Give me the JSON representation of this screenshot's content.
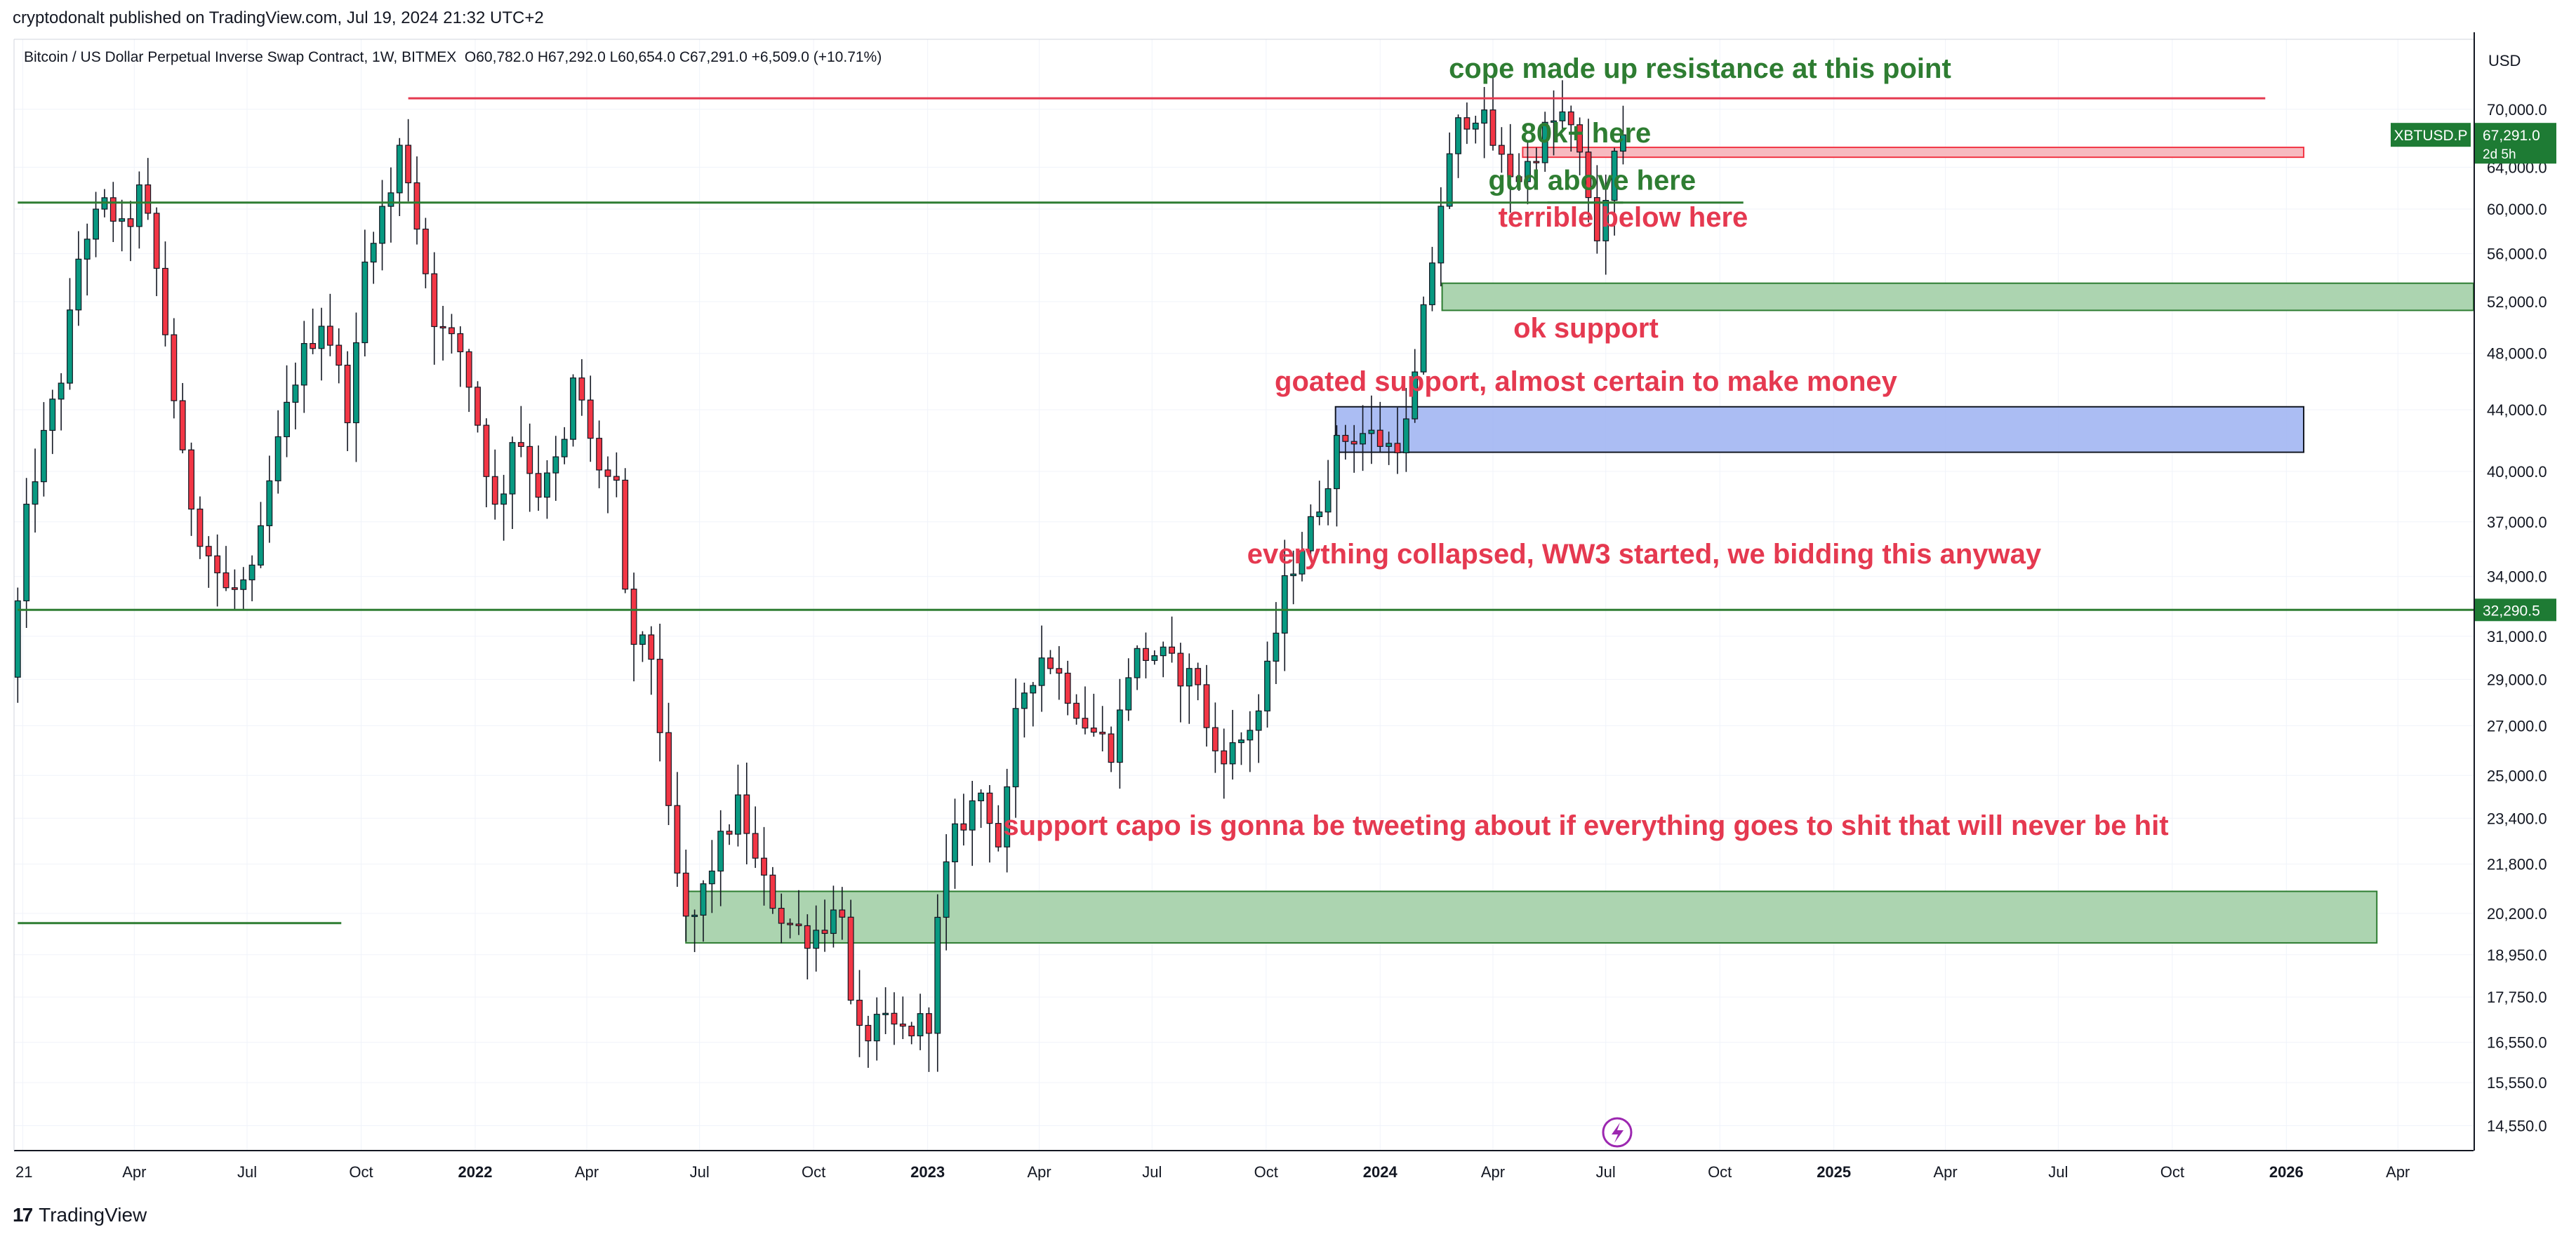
{
  "header": {
    "published": "cryptodonalt published on TradingView.com, Jul 19, 2024 21:32 UTC+2",
    "symbol": "Bitcoin / US Dollar Perpetual Inverse Swap Contract, 1W, BITMEX",
    "ohlc": "O60,782.0  H67,292.0  L60,654.0  C67,291.0  +6,509.0 (+10.71%)"
  },
  "footer": {
    "brand": "TradingView",
    "logo": "17"
  },
  "price_axis": {
    "currency": "USD",
    "ticks": [
      "70,000.0",
      "64,000.0",
      "60,000.0",
      "56,000.0",
      "52,000.0",
      "48,000.0",
      "44,000.0",
      "40,000.0",
      "37,000.0",
      "34,000.0",
      "31,000.0",
      "29,000.0",
      "27,000.0",
      "25,000.0",
      "23,400.0",
      "21,800.0",
      "20,200.0",
      "18,950.0",
      "17,750.0",
      "16,550.0",
      "15,550.0",
      "14,550.0"
    ],
    "last_label": "XBTUSD.P",
    "last_value": "67,291.0",
    "last_countdown": "2d 5h",
    "level_label": "32,290.5"
  },
  "time_axis": {
    "labels": [
      {
        "t": "2021-01",
        "text": "21",
        "bold": false
      },
      {
        "t": "2021-04",
        "text": "Apr",
        "bold": false
      },
      {
        "t": "2021-07",
        "text": "Jul",
        "bold": false
      },
      {
        "t": "2021-10",
        "text": "Oct",
        "bold": false
      },
      {
        "t": "2022-01",
        "text": "2022",
        "bold": true
      },
      {
        "t": "2022-04",
        "text": "Apr",
        "bold": false
      },
      {
        "t": "2022-07",
        "text": "Jul",
        "bold": false
      },
      {
        "t": "2022-10",
        "text": "Oct",
        "bold": false
      },
      {
        "t": "2023-01",
        "text": "2023",
        "bold": true
      },
      {
        "t": "2023-04",
        "text": "Apr",
        "bold": false
      },
      {
        "t": "2023-07",
        "text": "Jul",
        "bold": false
      },
      {
        "t": "2023-10",
        "text": "Oct",
        "bold": false
      },
      {
        "t": "2024-01",
        "text": "2024",
        "bold": true
      },
      {
        "t": "2024-04",
        "text": "Apr",
        "bold": false
      },
      {
        "t": "2024-07",
        "text": "Jul",
        "bold": false
      },
      {
        "t": "2024-10",
        "text": "Oct",
        "bold": false
      },
      {
        "t": "2025-01",
        "text": "2025",
        "bold": true
      },
      {
        "t": "2025-04",
        "text": "Apr",
        "bold": false
      },
      {
        "t": "2025-07",
        "text": "Jul",
        "bold": false
      },
      {
        "t": "2025-10",
        "text": "Oct",
        "bold": false
      },
      {
        "t": "2026-01",
        "text": "2026",
        "bold": true
      },
      {
        "t": "2026-04",
        "text": "Apr",
        "bold": false
      }
    ]
  },
  "annotations": [
    {
      "text": "cope made up resistance at this point",
      "color": "#2e7d32",
      "t": "2024-09-15",
      "price": 73500
    },
    {
      "text": "80k+ here",
      "color": "#2e7d32",
      "t": "2024-06-15",
      "price": 66500
    },
    {
      "text": "gud above here",
      "color": "#2e7d32",
      "t": "2024-06-20",
      "price": 61800
    },
    {
      "text": "terrible below here",
      "color": "#e53950",
      "t": "2024-07-15",
      "price": 58400
    },
    {
      "text": "ok support",
      "color": "#e53950",
      "t": "2024-06-15",
      "price": 49200
    },
    {
      "text": "goated support, almost certain to make money",
      "color": "#e53950",
      "t": "2024-06-15",
      "price": 45300
    },
    {
      "text": "everything collapsed, WW3 started, we bidding this anyway",
      "color": "#e53950",
      "t": "2024-08-01",
      "price": 34700
    },
    {
      "text": "support capo is gonna be tweeting about if everything goes to shit that will never be hit",
      "color": "#e53950",
      "t": "2024-06-15",
      "price": 22800
    }
  ],
  "colors": {
    "up": "#089981",
    "down": "#f23645",
    "grid": "#f0f3fa",
    "text": "#131722",
    "green_line": "#2e7d32",
    "red_line": "#e53950",
    "zone_green": "#a5d0a9",
    "zone_blue": "#a4b7f2",
    "zone_red": "#f6b4bb"
  },
  "chart_data": {
    "type": "candlestick",
    "timeframe": "1W",
    "x_range": [
      "2020-12-25",
      "2026-06-01"
    ],
    "y_scale": "log",
    "y_range": [
      14000,
      78000
    ],
    "levels": [
      {
        "price": 71200,
        "from": "2021-11-08",
        "to": "2025-12-15",
        "color": "#e53950"
      },
      {
        "price": 60600,
        "from": "2020-12-28",
        "to": "2024-07-15",
        "color": "#2e7d32"
      },
      {
        "price": 60600,
        "from": "2024-05-15",
        "to": "2024-10-20",
        "color": "#2e7d32"
      },
      {
        "price": 32290.5,
        "from": "2020-12-28",
        "to": "2026-06-01",
        "color": "#2e7d32"
      },
      {
        "price": 19900,
        "from": "2020-12-28",
        "to": "2021-09-15",
        "color": "#2e7d32"
      }
    ],
    "zones": [
      {
        "from": "2024-04-25",
        "to": "2026-01-15",
        "top": 66000,
        "bottom": 65000,
        "fill": "#f6b4bb",
        "edge": "#f23645"
      },
      {
        "from": "2024-02-20",
        "to": "2026-06-01",
        "top": 53500,
        "bottom": 51300,
        "fill": "#a5d0a9",
        "edge": "#2e7d32"
      },
      {
        "from": "2023-11-26",
        "to": "2026-01-15",
        "top": 44200,
        "bottom": 41200,
        "fill": "#a4b7f2",
        "edge": "#131722"
      },
      {
        "from": "2022-06-20",
        "to": "2026-03-15",
        "top": 20900,
        "bottom": 19300,
        "fill": "#a5d0a9",
        "edge": "#2e7d32"
      }
    ],
    "anchors": [
      [
        "2020-12-28",
        30000
      ],
      [
        "2021-01-10",
        38500
      ],
      [
        "2021-02-07",
        47000
      ],
      [
        "2021-02-21",
        57000
      ],
      [
        "2021-03-14",
        60500
      ],
      [
        "2021-03-28",
        57500
      ],
      [
        "2021-04-11",
        62000
      ],
      [
        "2021-04-25",
        53500
      ],
      [
        "2021-05-16",
        39500
      ],
      [
        "2021-05-30",
        36000
      ],
      [
        "2021-06-20",
        33000
      ],
      [
        "2021-07-11",
        34000
      ],
      [
        "2021-07-25",
        40000
      ],
      [
        "2021-08-15",
        47000
      ],
      [
        "2021-09-05",
        51000
      ],
      [
        "2021-09-26",
        43500
      ],
      [
        "2021-10-10",
        57000
      ],
      [
        "2021-10-31",
        62000
      ],
      [
        "2021-11-07",
        67000
      ],
      [
        "2021-11-21",
        57500
      ],
      [
        "2021-12-05",
        50000
      ],
      [
        "2021-12-26",
        48000
      ],
      [
        "2022-01-09",
        42500
      ],
      [
        "2022-01-23",
        37000
      ],
      [
        "2022-02-06",
        43000
      ],
      [
        "2022-02-27",
        38500
      ],
      [
        "2022-03-20",
        42000
      ],
      [
        "2022-03-27",
        47000
      ],
      [
        "2022-04-10",
        41000
      ],
      [
        "2022-05-01",
        38500
      ],
      [
        "2022-05-08",
        31000
      ],
      [
        "2022-05-29",
        30000
      ],
      [
        "2022-06-12",
        22500
      ],
      [
        "2022-06-26",
        19500
      ],
      [
        "2022-07-17",
        22000
      ],
      [
        "2022-08-07",
        24000
      ],
      [
        "2022-08-21",
        21500
      ],
      [
        "2022-09-11",
        20000
      ],
      [
        "2022-10-02",
        19500
      ],
      [
        "2022-10-30",
        20500
      ],
      [
        "2022-11-06",
        16500
      ],
      [
        "2022-11-27",
        17000
      ],
      [
        "2022-12-18",
        16800
      ],
      [
        "2023-01-08",
        17200
      ],
      [
        "2023-01-15",
        20800
      ],
      [
        "2023-01-29",
        23000
      ],
      [
        "2023-02-19",
        24500
      ],
      [
        "2023-03-05",
        22200
      ],
      [
        "2023-03-12",
        24800
      ],
      [
        "2023-03-19",
        28000
      ],
      [
        "2023-04-09",
        30300
      ],
      [
        "2023-04-23",
        29000
      ],
      [
        "2023-05-14",
        27000
      ],
      [
        "2023-06-04",
        26000
      ],
      [
        "2023-06-18",
        30000
      ],
      [
        "2023-07-09",
        30200
      ],
      [
        "2023-07-30",
        29200
      ],
      [
        "2023-08-13",
        29000
      ],
      [
        "2023-08-20",
        26000
      ],
      [
        "2023-09-10",
        26000
      ],
      [
        "2023-10-01",
        27800
      ],
      [
        "2023-10-22",
        34000
      ],
      [
        "2023-11-12",
        37000
      ],
      [
        "2023-12-03",
        42000
      ],
      [
        "2023-12-24",
        42500
      ],
      [
        "2024-01-14",
        41500
      ],
      [
        "2024-01-28",
        43000
      ],
      [
        "2024-02-11",
        52000
      ],
      [
        "2024-02-25",
        62000
      ],
      [
        "2024-03-10",
        69000
      ],
      [
        "2024-03-24",
        70000
      ],
      [
        "2024-04-14",
        64000
      ],
      [
        "2024-04-28",
        63000
      ],
      [
        "2024-05-19",
        68000
      ],
      [
        "2024-06-02",
        69500
      ],
      [
        "2024-06-16",
        64000
      ],
      [
        "2024-06-30",
        57000
      ],
      [
        "2024-07-07",
        60700
      ],
      [
        "2024-07-15",
        67291
      ]
    ]
  }
}
